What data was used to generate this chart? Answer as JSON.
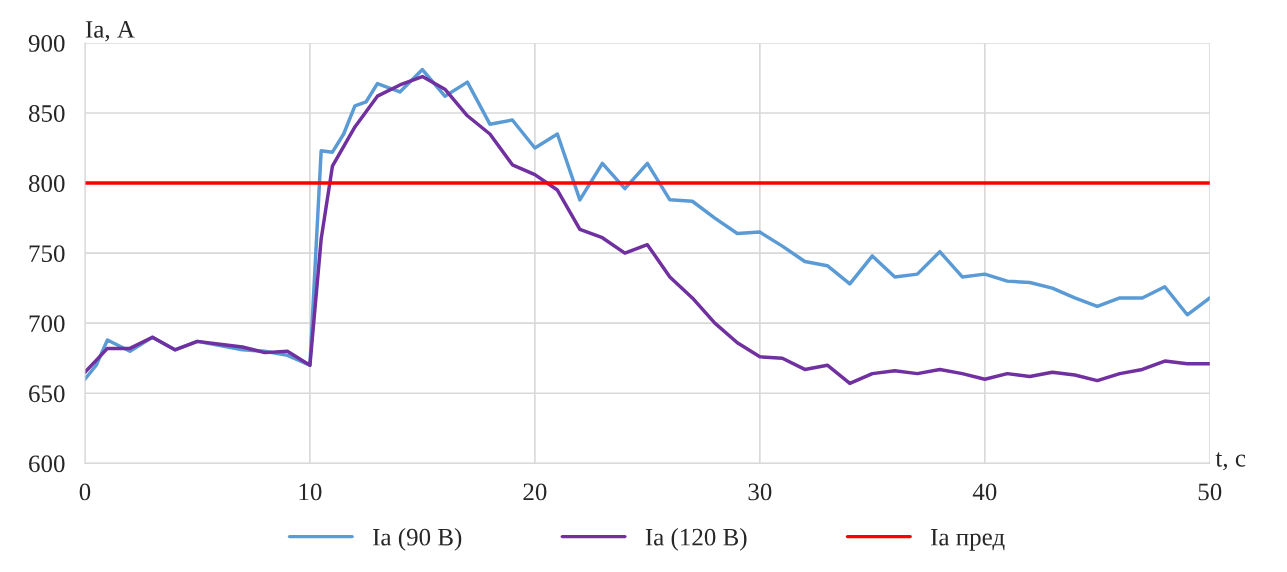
{
  "chart_data": {
    "type": "line",
    "xlabel": "t, с",
    "ylabel": "Ia, А",
    "xlim": [
      0,
      50
    ],
    "xticks": [
      0,
      10,
      20,
      30,
      40,
      50
    ],
    "ylim": [
      600,
      900
    ],
    "yticks": [
      600,
      650,
      700,
      750,
      800,
      850,
      900
    ],
    "grid": true,
    "legend": "bottom",
    "series": [
      {
        "name": "Ia (90 В)",
        "color": "#5b9bd5",
        "x": [
          0,
          0.5,
          1,
          2,
          3,
          4,
          5,
          6,
          7,
          8,
          9,
          10,
          10.5,
          11,
          11.5,
          12,
          12.5,
          13,
          14,
          15,
          16,
          17,
          18,
          19,
          20,
          21,
          22,
          23,
          24,
          25,
          26,
          27,
          28,
          29,
          30,
          31,
          32,
          33,
          34,
          35,
          36,
          37,
          38,
          39,
          40,
          41,
          42,
          43,
          44,
          45,
          46,
          47,
          48,
          49,
          50
        ],
        "values": [
          660,
          670,
          688,
          680,
          690,
          681,
          687,
          684,
          681,
          680,
          677,
          670,
          823,
          822,
          835,
          855,
          858,
          871,
          865,
          881,
          862,
          872,
          842,
          845,
          825,
          835,
          788,
          814,
          796,
          814,
          788,
          787,
          775,
          764,
          765,
          755,
          744,
          741,
          728,
          748,
          733,
          735,
          751,
          733,
          735,
          730,
          729,
          725,
          718,
          712,
          718,
          718,
          726,
          706,
          718
        ]
      },
      {
        "name": "Ia (120 В)",
        "color": "#7030a0",
        "x": [
          0,
          1,
          2,
          3,
          4,
          5,
          6,
          7,
          8,
          9,
          10,
          10.5,
          11,
          12,
          13,
          14,
          15,
          16,
          17,
          18,
          19,
          20,
          21,
          22,
          23,
          24,
          25,
          26,
          27,
          28,
          29,
          30,
          31,
          32,
          33,
          34,
          35,
          36,
          37,
          38,
          39,
          40,
          41,
          42,
          43,
          44,
          45,
          46,
          47,
          48,
          49,
          50
        ],
        "values": [
          665,
          682,
          682,
          690,
          681,
          687,
          685,
          683,
          679,
          680,
          670,
          760,
          812,
          840,
          862,
          870,
          876,
          867,
          848,
          835,
          813,
          806,
          795,
          767,
          761,
          750,
          756,
          733,
          718,
          700,
          686,
          676,
          675,
          667,
          670,
          657,
          664,
          666,
          664,
          667,
          664,
          660,
          664,
          662,
          665,
          663,
          659,
          664,
          667,
          673,
          671,
          671
        ]
      }
    ],
    "ref_lines": [
      {
        "axis": "y",
        "value": 800,
        "label": "Ia пред",
        "color": "#ff0000"
      }
    ]
  }
}
